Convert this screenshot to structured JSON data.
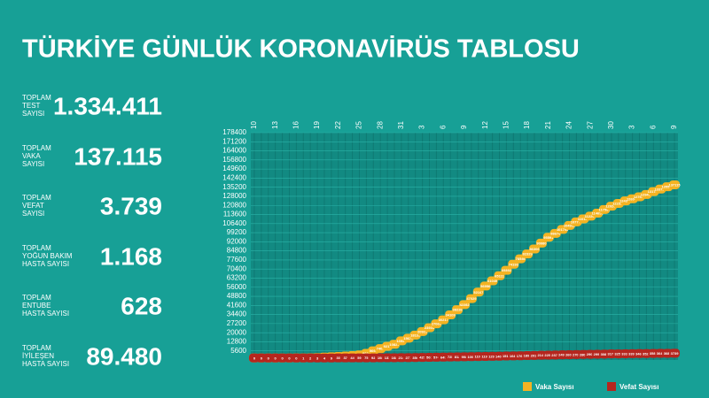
{
  "title": "TÜRKİYE GÜNLÜK KORONAVİRÜS TABLOSU",
  "stats": [
    {
      "label": [
        "TOPLAM",
        "TEST",
        "SAYISI"
      ],
      "value": "1.334.411"
    },
    {
      "label": [
        "TOPLAM",
        "VAKA",
        "SAYISI"
      ],
      "value": "137.115"
    },
    {
      "label": [
        "TOPLAM",
        "VEFAT",
        "SAYISI"
      ],
      "value": "3.739"
    },
    {
      "label": [
        "TOPLAM",
        "YOĞUN BAKIM",
        "HASTA SAYISI"
      ],
      "value": "1.168"
    },
    {
      "label": [
        "TOPLAM",
        "ENTUBE",
        "HASTA SAYISI"
      ],
      "value": "628"
    },
    {
      "label": [
        "TOPLAM",
        "İYİLEŞEN",
        "HASTA SAYISI"
      ],
      "value": "89.480"
    }
  ],
  "chart_data": {
    "type": "line",
    "categories": [
      "10",
      null,
      null,
      "13",
      null,
      null,
      "16",
      null,
      null,
      "19",
      null,
      null,
      "22",
      null,
      null,
      "25",
      null,
      null,
      "28",
      null,
      null,
      "31",
      null,
      null,
      "3",
      null,
      null,
      "6",
      null,
      null,
      "9",
      null,
      null,
      "12",
      null,
      null,
      "15",
      null,
      null,
      "18",
      null,
      null,
      "21",
      null,
      null,
      "24",
      null,
      null,
      "27",
      null,
      null,
      "30",
      null,
      null,
      "3",
      null,
      null,
      "6",
      null,
      null,
      "9"
    ],
    "series": [
      {
        "name": "Vaka Sayısı",
        "color": "#f4b322",
        "values": [
          1,
          1,
          1,
          5,
          6,
          18,
          47,
          98,
          191,
          359,
          670,
          947,
          1236,
          1529,
          1872,
          2433,
          3629,
          5698,
          7402,
          9217,
          10827,
          13531,
          15679,
          18135,
          20921,
          23934,
          27069,
          30217,
          34109,
          38226,
          42282,
          47029,
          52167,
          56956,
          61049,
          65111,
          69392,
          74193,
          78546,
          82329,
          86306,
          90980,
          95591,
          98674,
          101790,
          104912,
          107773,
          110130,
          112261,
          114653,
          117589,
          120204,
          122392,
          124375,
          126045,
          127659,
          129491,
          131744,
          133721,
          135569,
          137115
        ]
      },
      {
        "name": "Vefat Sayısı",
        "color": "#b5261e",
        "values": [
          0,
          0,
          0,
          0,
          0,
          0,
          0,
          1,
          2,
          3,
          4,
          9,
          30,
          37,
          44,
          59,
          75,
          92,
          108,
          131,
          168,
          214,
          277,
          356,
          425,
          501,
          574,
          649,
          725,
          812,
          908,
          1006,
          1101,
          1198,
          1296,
          1403,
          1518,
          1643,
          1769,
          1890,
          2017,
          2140,
          2259,
          2376,
          2491,
          2600,
          2706,
          2805,
          2900,
          2992,
          3081,
          3174,
          3258,
          3336,
          3397,
          3461,
          3520,
          3584,
          3641,
          3689,
          3739
        ]
      }
    ],
    "ylim": [
      -1600,
      178400
    ],
    "yticks": [
      5600,
      12800,
      20000,
      27200,
      34400,
      41600,
      48800,
      56000,
      63200,
      70400,
      77600,
      84800,
      92000,
      99200,
      106400,
      113600,
      120800,
      128000,
      135200,
      142400,
      149600,
      156800,
      164000,
      171200,
      178400
    ],
    "grid": true,
    "legend": "bottom-right"
  }
}
